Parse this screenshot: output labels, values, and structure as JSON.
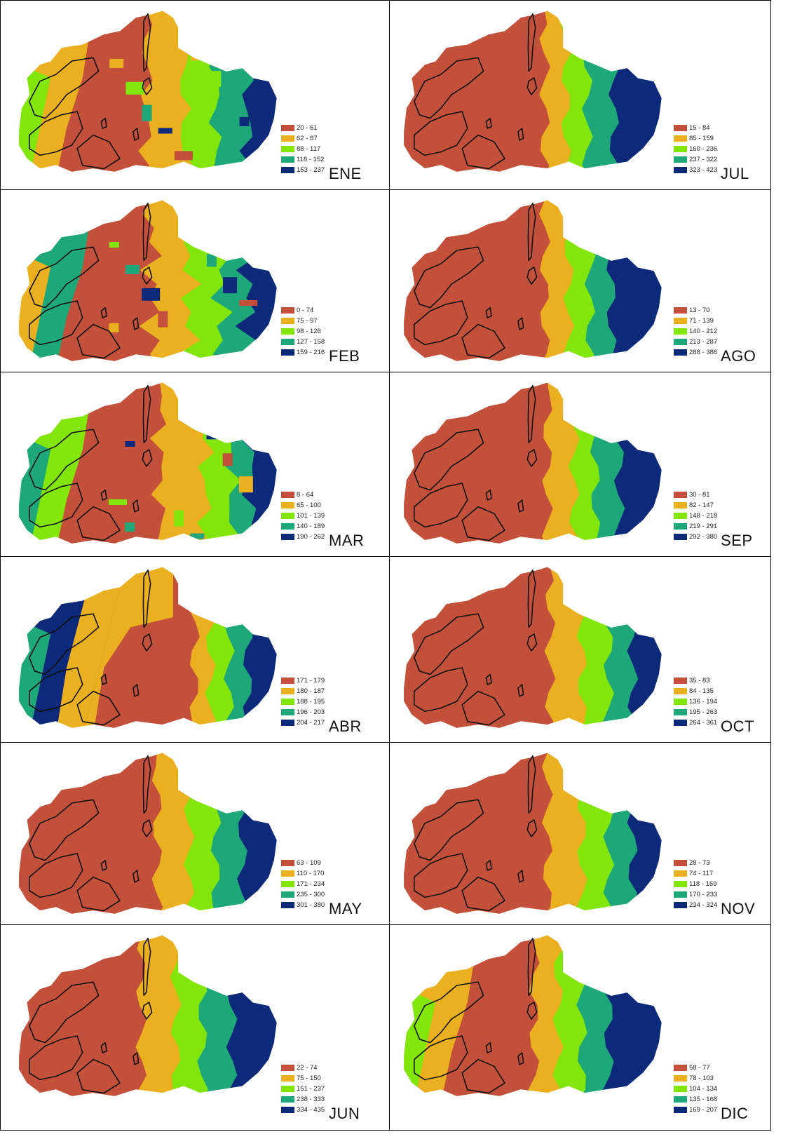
{
  "colors": [
    "#c2503a",
    "#eab020",
    "#82e60a",
    "#1ea87a",
    "#0d2a7a"
  ],
  "panels": [
    {
      "month": "ENE",
      "ranges": [
        "20 - 61",
        "62 - 87",
        "88 - 117",
        "118 - 152",
        "153 - 237"
      ],
      "bands": [
        0.5,
        0.64,
        0.76,
        0.88
      ],
      "west": [
        1,
        2
      ],
      "variant": "mixed"
    },
    {
      "month": "JUL",
      "ranges": [
        "15 - 84",
        "85 - 159",
        "160 - 236",
        "237 - 322",
        "323 - 423"
      ],
      "bands": [
        0.55,
        0.63,
        0.71,
        0.81
      ],
      "west": null,
      "variant": "bands"
    },
    {
      "month": "FEB",
      "ranges": [
        "0 - 74",
        "75 - 97",
        "98 - 126",
        "127 - 158",
        "159 - 216"
      ],
      "bands": [
        0.52,
        0.66,
        0.78,
        0.88
      ],
      "west": [
        3,
        1
      ],
      "variant": "mixed"
    },
    {
      "month": "AGO",
      "ranges": [
        "13 - 70",
        "71 - 139",
        "140 - 212",
        "213 - 287",
        "288 - 386"
      ],
      "bands": [
        0.55,
        0.64,
        0.72,
        0.8
      ],
      "west": null,
      "variant": "bands"
    },
    {
      "month": "MAR",
      "ranges": [
        "8 - 64",
        "65 - 100",
        "101 - 139",
        "140 - 189",
        "190 - 262"
      ],
      "bands": [
        0.55,
        0.72,
        0.82,
        0.89
      ],
      "west": [
        2,
        3
      ],
      "variant": "mixed"
    },
    {
      "month": "SEP",
      "ranges": [
        "30 - 81",
        "82 - 147",
        "148 - 218",
        "219 - 291",
        "292 - 380"
      ],
      "bands": [
        0.56,
        0.66,
        0.74,
        0.83
      ],
      "west": null,
      "variant": "bands"
    },
    {
      "month": "ABR",
      "ranges": [
        "171 - 179",
        "180 - 187",
        "188 - 195",
        "196 - 203",
        "204 - 217"
      ],
      "bands": [
        0.68,
        0.74,
        0.81,
        0.88
      ],
      "west": [
        4,
        3
      ],
      "variant": "abr"
    },
    {
      "month": "OCT",
      "ranges": [
        "35 - 83",
        "84 - 135",
        "136 - 194",
        "195 - 263",
        "264 - 361"
      ],
      "bands": [
        0.57,
        0.69,
        0.79,
        0.88
      ],
      "west": null,
      "variant": "bands"
    },
    {
      "month": "MAY",
      "ranges": [
        "63 - 109",
        "110 - 170",
        "171 - 234",
        "235 - 300",
        "301 - 380"
      ],
      "bands": [
        0.54,
        0.66,
        0.76,
        0.86
      ],
      "west": null,
      "variant": "bands"
    },
    {
      "month": "NOV",
      "ranges": [
        "28 - 73",
        "74 - 117",
        "118 - 169",
        "170 - 233",
        "234 - 324"
      ],
      "bands": [
        0.56,
        0.69,
        0.79,
        0.88
      ],
      "west": null,
      "variant": "bands"
    },
    {
      "month": "JUN",
      "ranges": [
        "22 - 74",
        "75 - 150",
        "151 - 237",
        "238 - 333",
        "334 - 435"
      ],
      "bands": [
        0.48,
        0.61,
        0.71,
        0.82
      ],
      "west": null,
      "variant": "bands"
    },
    {
      "month": "DIC",
      "ranges": [
        "58 - 77",
        "78 - 103",
        "104 - 134",
        "135 - 168",
        "169 - 207"
      ],
      "bands": [
        0.51,
        0.6,
        0.69,
        0.79
      ],
      "west": [
        1,
        2
      ],
      "variant": "dic"
    }
  ]
}
